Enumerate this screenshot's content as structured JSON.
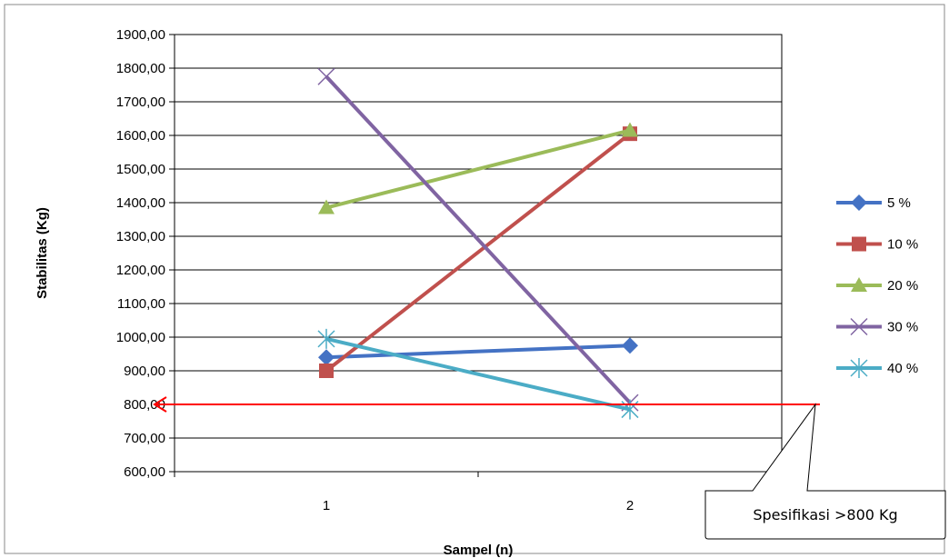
{
  "chart_data": {
    "type": "line",
    "title": "",
    "xlabel": "Sampel (n)",
    "ylabel": "Stabilitas  (Kg)",
    "categories": [
      "1",
      "2"
    ],
    "ylim": [
      600,
      1900
    ],
    "ytick_step": 100,
    "ytick_labels": [
      "600,00",
      "700,00",
      "800,00",
      "900,00",
      "1000,00",
      "1100,00",
      "1200,00",
      "1300,00",
      "1400,00",
      "1500,00",
      "1600,00",
      "1700,00",
      "1800,00",
      "1900,00"
    ],
    "grid": "horizontal",
    "legend_position": "right",
    "series": [
      {
        "name": "5 %",
        "values": [
          940,
          975
        ],
        "color": "#4472C4",
        "marker": "diamond"
      },
      {
        "name": "10 %",
        "values": [
          900,
          1605
        ],
        "color": "#C0504D",
        "marker": "square"
      },
      {
        "name": "20 %",
        "values": [
          1385,
          1615
        ],
        "color": "#9BBB59",
        "marker": "triangle"
      },
      {
        "name": "30 %",
        "values": [
          1775,
          805
        ],
        "color": "#8064A2",
        "marker": "x"
      },
      {
        "name": "40 %",
        "values": [
          995,
          785
        ],
        "color": "#4BACC6",
        "marker": "star"
      }
    ],
    "reference_line": {
      "value": 800,
      "color": "#FF0000"
    },
    "annotation": {
      "text": "Spesifikasi >800 Kg"
    }
  }
}
